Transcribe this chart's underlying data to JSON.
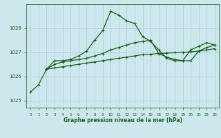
{
  "title": "Graphe pression niveau de la mer (hPa)",
  "background_color": "#cce8ec",
  "grid_color": "#aacdd4",
  "text_color": "#1a5c1a",
  "line_color": "#1a5c1a",
  "xlim": [
    -0.5,
    23.5
  ],
  "ylim": [
    1024.7,
    1029.0
  ],
  "yticks": [
    1025,
    1026,
    1027,
    1028
  ],
  "xticks": [
    0,
    1,
    2,
    3,
    4,
    5,
    6,
    7,
    8,
    9,
    10,
    11,
    12,
    13,
    14,
    15,
    16,
    17,
    18,
    19,
    20,
    21,
    22,
    23
  ],
  "series1_x": [
    0,
    1,
    2,
    3,
    4,
    5,
    6,
    7,
    8,
    9,
    10,
    11,
    12,
    13,
    14,
    15,
    16,
    17,
    18,
    19,
    20,
    21,
    22,
    23
  ],
  "series1_y": [
    1025.35,
    1025.65,
    1026.3,
    1026.65,
    1026.65,
    1026.7,
    1026.85,
    1027.05,
    1027.5,
    1027.9,
    1028.7,
    1028.55,
    1028.3,
    1028.2,
    1027.65,
    1027.45,
    1027.1,
    1026.75,
    1026.65,
    1026.65,
    1027.1,
    1027.25,
    1027.4,
    1027.3
  ],
  "series2_x": [
    2,
    3,
    4,
    5,
    6,
    7,
    8,
    9,
    10,
    11,
    12,
    13,
    14,
    15,
    16,
    17,
    18,
    19,
    20,
    21,
    22,
    23
  ],
  "series2_y": [
    1026.3,
    1026.35,
    1026.4,
    1026.45,
    1026.5,
    1026.55,
    1026.6,
    1026.65,
    1026.7,
    1026.75,
    1026.8,
    1026.85,
    1026.9,
    1026.92,
    1026.95,
    1026.97,
    1026.98,
    1027.0,
    1027.02,
    1027.05,
    1027.1,
    1027.15
  ],
  "series3_x": [
    2,
    3,
    4,
    5,
    6,
    7,
    8,
    9,
    10,
    11,
    12,
    13,
    14,
    15,
    16,
    17,
    18,
    19,
    20,
    21,
    22,
    23
  ],
  "series3_y": [
    1026.3,
    1026.5,
    1026.6,
    1026.65,
    1026.7,
    1026.75,
    1026.85,
    1026.95,
    1027.1,
    1027.2,
    1027.3,
    1027.4,
    1027.45,
    1027.5,
    1026.95,
    1026.8,
    1026.7,
    1026.65,
    1026.65,
    1027.05,
    1027.2,
    1027.3
  ]
}
